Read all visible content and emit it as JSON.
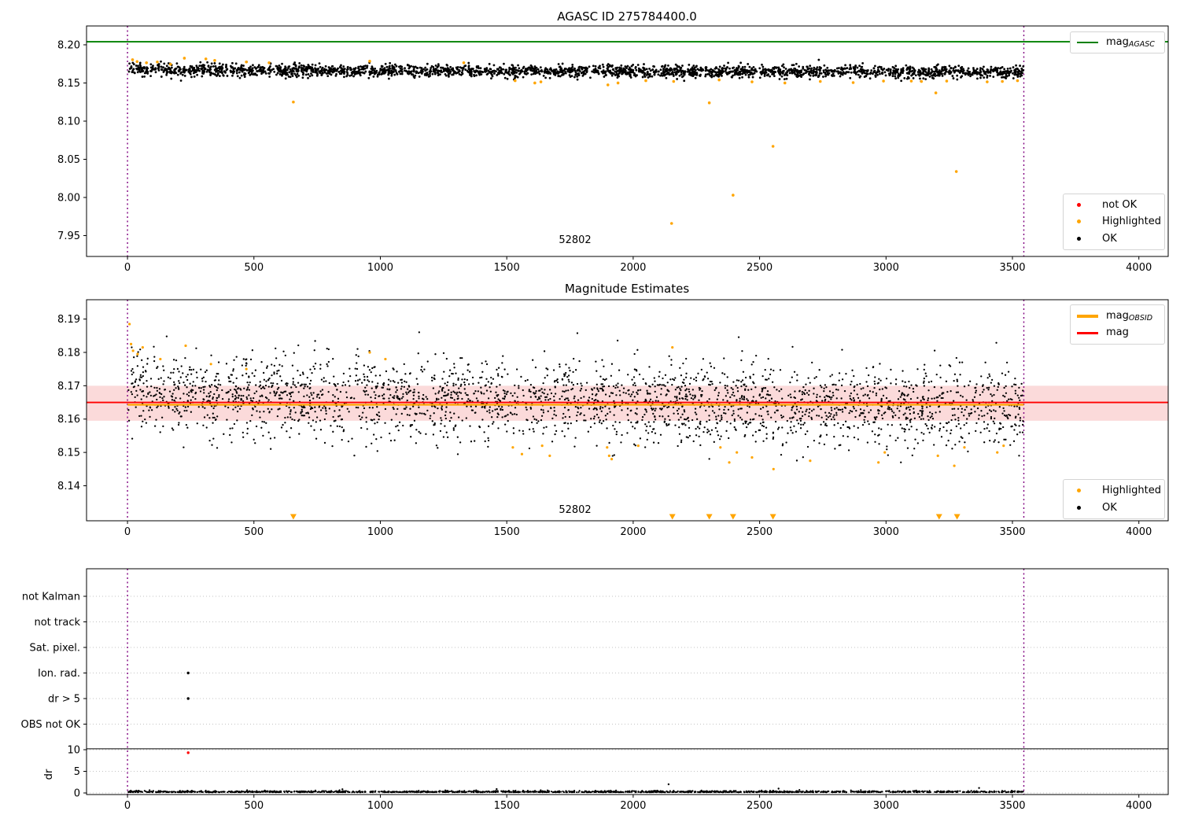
{
  "chart_data": [
    {
      "type": "scatter",
      "title": "AGASC ID 275784400.0",
      "annotation": {
        "text": "52802",
        "x": 1766,
        "y": 7.945
      },
      "xlim": [
        -162,
        4116
      ],
      "ylim": [
        7.9227,
        8.2247
      ],
      "x_tick_values": [
        0,
        500,
        1000,
        1500,
        2000,
        2500,
        3000,
        3500,
        4000
      ],
      "x_tick_labels": [
        "0",
        "500",
        "1000",
        "1500",
        "2000",
        "2500",
        "3000",
        "3500",
        "4000"
      ],
      "y_tick_values": [
        7.95,
        8.0,
        8.05,
        8.1,
        8.15,
        8.2
      ],
      "y_tick_labels": [
        "7.95",
        "8.00",
        "8.05",
        "8.10",
        "8.15",
        "8.20"
      ],
      "obsid_vlines": {
        "x": [
          0,
          3545
        ],
        "color": "#800080"
      },
      "agasc_line": {
        "label_main": "mag",
        "label_sub": "AGASC",
        "value": 8.204,
        "color": "#008000"
      },
      "ok_series": {
        "label": "OK",
        "color": "#000000",
        "n": 2600,
        "x_start": 2,
        "x_end": 3543,
        "mean": 8.1655,
        "std": 0.004,
        "trend": -0.003,
        "start_boost_amp": 0.008,
        "start_boost_decay": 60,
        "clip_max": 8.1975,
        "seed": 42
      },
      "not_ok_series": {
        "label": "not OK",
        "color": "#ff0000",
        "points": []
      },
      "highlighted_series": {
        "label": "Highlighted",
        "color": "#ffa500",
        "points": [
          [
            20,
            8.1805
          ],
          [
            38,
            8.178
          ],
          [
            75,
            8.1765
          ],
          [
            118,
            8.1775
          ],
          [
            170,
            8.1745
          ],
          [
            225,
            8.1825
          ],
          [
            310,
            8.1815
          ],
          [
            345,
            8.1795
          ],
          [
            470,
            8.1775
          ],
          [
            560,
            8.1765
          ],
          [
            656,
            8.125
          ],
          [
            958,
            8.1785
          ],
          [
            1330,
            8.1765
          ],
          [
            1533,
            8.153
          ],
          [
            1611,
            8.15
          ],
          [
            1635,
            8.1515
          ],
          [
            1900,
            8.1475
          ],
          [
            1940,
            8.15
          ],
          [
            2050,
            8.153
          ],
          [
            2152,
            7.966
          ],
          [
            2160,
            8.152
          ],
          [
            2301,
            8.124
          ],
          [
            2340,
            8.154
          ],
          [
            2395,
            8.003
          ],
          [
            2470,
            8.1515
          ],
          [
            2553,
            8.067
          ],
          [
            2600,
            8.15
          ],
          [
            2740,
            8.152
          ],
          [
            2870,
            8.1505
          ],
          [
            2990,
            8.1525
          ],
          [
            3100,
            8.1525
          ],
          [
            3140,
            8.152
          ],
          [
            3197,
            8.137
          ],
          [
            3240,
            8.1525
          ],
          [
            3278,
            8.034
          ],
          [
            3400,
            8.1515
          ],
          [
            3460,
            8.152
          ],
          [
            3520,
            8.153
          ]
        ]
      },
      "legend_points": [
        {
          "label": "not OK",
          "color": "#ff0000"
        },
        {
          "label": "Highlighted",
          "color": "#ffa500"
        },
        {
          "label": "OK",
          "color": "#000000"
        }
      ]
    },
    {
      "type": "scatter",
      "title": "Magnitude Estimates",
      "annotation": {
        "text": "52802",
        "x": 1766,
        "y": 8.132
      },
      "xlim": [
        -162,
        4116
      ],
      "ylim": [
        8.1295,
        8.1958
      ],
      "x_tick_values": [
        0,
        500,
        1000,
        1500,
        2000,
        2500,
        3000,
        3500,
        4000
      ],
      "x_tick_labels": [
        "0",
        "500",
        "1000",
        "1500",
        "2000",
        "2500",
        "3000",
        "3500",
        "4000"
      ],
      "y_tick_values": [
        8.14,
        8.15,
        8.16,
        8.17,
        8.18,
        8.19
      ],
      "y_tick_labels": [
        "8.14",
        "8.15",
        "8.16",
        "8.17",
        "8.18",
        "8.19"
      ],
      "obsid_vlines": {
        "x": [
          0,
          3545
        ],
        "color": "#800080"
      },
      "band": {
        "y_low": 8.1595,
        "y_high": 8.17,
        "color": "#fbdada"
      },
      "mag_line": {
        "label_main": "mag",
        "label_sub": "",
        "value": 8.165,
        "color": "#ff0000"
      },
      "obsid_line": {
        "label_main": "mag",
        "label_sub": "OBSID",
        "value": 8.1643,
        "color": "#ffa500",
        "x_start": 0,
        "x_end": 3545
      },
      "ok_series": {
        "label": "OK",
        "color": "#000000",
        "n": 2800,
        "x_start": 2,
        "x_end": 3543,
        "mean": 8.1653,
        "std": 0.0058,
        "trend": -0.004,
        "start_boost_amp": 0.01,
        "start_boost_decay": 55,
        "clip_min": 8.147,
        "clip_max": 8.1885,
        "seed": 1337
      },
      "highlighted_series": {
        "label": "Highlighted",
        "color": "#ffa500",
        "points": [
          [
            8,
            8.1885
          ],
          [
            14,
            8.1825
          ],
          [
            22,
            8.1805
          ],
          [
            40,
            8.1795
          ],
          [
            60,
            8.1815
          ],
          [
            130,
            8.178
          ],
          [
            230,
            8.182
          ],
          [
            330,
            8.1765
          ],
          [
            470,
            8.175
          ],
          [
            958,
            8.18
          ],
          [
            1020,
            8.178
          ],
          [
            2155,
            8.1815
          ],
          [
            1524,
            8.1515
          ],
          [
            1560,
            8.1495
          ],
          [
            1640,
            8.152
          ],
          [
            1670,
            8.149
          ],
          [
            1897,
            8.1515
          ],
          [
            1905,
            8.149
          ],
          [
            1915,
            8.148
          ],
          [
            2020,
            8.152
          ],
          [
            2345,
            8.1515
          ],
          [
            2380,
            8.147
          ],
          [
            2410,
            8.15
          ],
          [
            2470,
            8.1485
          ],
          [
            2555,
            8.145
          ],
          [
            2700,
            8.1475
          ],
          [
            2970,
            8.147
          ],
          [
            2995,
            8.15
          ],
          [
            3205,
            8.149
          ],
          [
            3270,
            8.146
          ],
          [
            3310,
            8.1515
          ],
          [
            3440,
            8.15
          ],
          [
            3465,
            8.152
          ]
        ]
      },
      "below_range_markers": {
        "color": "#ffa500",
        "x": [
          656,
          2155,
          2301,
          2395,
          2553,
          3210,
          3281
        ]
      },
      "legend_points": [
        {
          "label": "Highlighted",
          "color": "#ffa500"
        },
        {
          "label": "OK",
          "color": "#000000"
        }
      ]
    },
    {
      "type": "scatter-categorical",
      "categories": [
        "not Kalman",
        "not track",
        "Sat. pixel.",
        "Ion. rad.",
        "dr > 5",
        "OBS not OK"
      ],
      "dr_axis": {
        "label": "dr",
        "tick_values": [
          10,
          5,
          0
        ],
        "tick_labels": [
          "10",
          "5",
          "0"
        ],
        "separator_value": 10.2
      },
      "xlim": [
        -162,
        4116
      ],
      "x_tick_values": [
        0,
        500,
        1000,
        1500,
        2000,
        2500,
        3000,
        3500,
        4000
      ],
      "x_tick_labels": [
        "0",
        "500",
        "1000",
        "1500",
        "2000",
        "2500",
        "3000",
        "3500",
        "4000"
      ],
      "obsid_vlines": {
        "x": [
          0,
          3545
        ],
        "color": "#800080"
      },
      "flag_points": {
        "color": "#000000",
        "points": [
          {
            "x": 240,
            "category": "Ion. rad."
          },
          {
            "x": 240,
            "category": "dr > 5"
          }
        ]
      },
      "not_ok_points": {
        "color": "#ff0000",
        "points": [
          [
            240,
            9.3
          ]
        ]
      },
      "dr_series": {
        "color": "#000000",
        "n": 1600,
        "x_start": 2,
        "x_end": 3543,
        "base": 0.15,
        "spread": 0.16,
        "max": 0.9,
        "seed": 7,
        "outliers": [
          [
            850,
            0.85
          ],
          [
            1460,
            0.9
          ],
          [
            2140,
            2.0
          ],
          [
            2575,
            1.0
          ],
          [
            3368,
            1.15
          ]
        ]
      }
    }
  ]
}
